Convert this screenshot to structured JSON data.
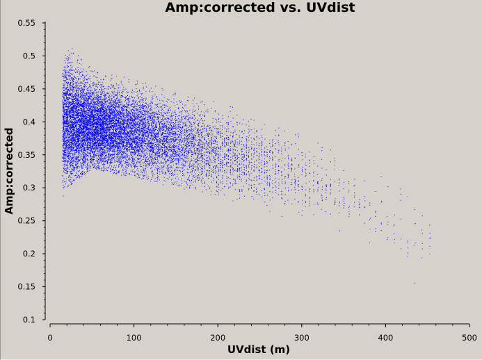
{
  "chart_data": {
    "type": "scatter",
    "title": "Amp:corrected vs. UVdist",
    "xlabel": "UVdist (m)",
    "ylabel": "Amp:corrected",
    "xlim": [
      0,
      500
    ],
    "ylim": [
      0.1,
      0.55
    ],
    "x_ticks": [
      0,
      100,
      200,
      300,
      400,
      500
    ],
    "y_ticks": [
      0.1,
      0.15,
      0.2,
      0.25,
      0.3,
      0.35,
      0.4,
      0.45,
      0.5,
      0.55
    ],
    "x_tick_labels": [
      "0",
      "100",
      "200",
      "300",
      "400",
      "500"
    ],
    "y_tick_labels": [
      "0.1",
      "0.15",
      "0.2",
      "0.25",
      "0.3",
      "0.35",
      "0.4",
      "0.45",
      "0.5",
      "0.55"
    ],
    "point_color": "#0000ff",
    "grid": false,
    "trend": [
      {
        "uvdist": 15,
        "amp_center": 0.395,
        "amp_min": 0.275,
        "amp_max": 0.48
      },
      {
        "uvdist": 20,
        "amp_center": 0.4,
        "amp_min": 0.3,
        "amp_max": 0.52
      },
      {
        "uvdist": 50,
        "amp_center": 0.395,
        "amp_min": 0.33,
        "amp_max": 0.48
      },
      {
        "uvdist": 100,
        "amp_center": 0.385,
        "amp_min": 0.315,
        "amp_max": 0.465
      },
      {
        "uvdist": 150,
        "amp_center": 0.37,
        "amp_min": 0.3,
        "amp_max": 0.445
      },
      {
        "uvdist": 200,
        "amp_center": 0.355,
        "amp_min": 0.285,
        "amp_max": 0.43
      },
      {
        "uvdist": 250,
        "amp_center": 0.34,
        "amp_min": 0.265,
        "amp_max": 0.41
      },
      {
        "uvdist": 300,
        "amp_center": 0.32,
        "amp_min": 0.245,
        "amp_max": 0.385
      },
      {
        "uvdist": 350,
        "amp_center": 0.29,
        "amp_min": 0.225,
        "amp_max": 0.35
      },
      {
        "uvdist": 400,
        "amp_center": 0.255,
        "amp_min": 0.175,
        "amp_max": 0.315
      },
      {
        "uvdist": 460,
        "amp_center": 0.205,
        "amp_min": 0.13,
        "amp_max": 0.26
      }
    ]
  }
}
